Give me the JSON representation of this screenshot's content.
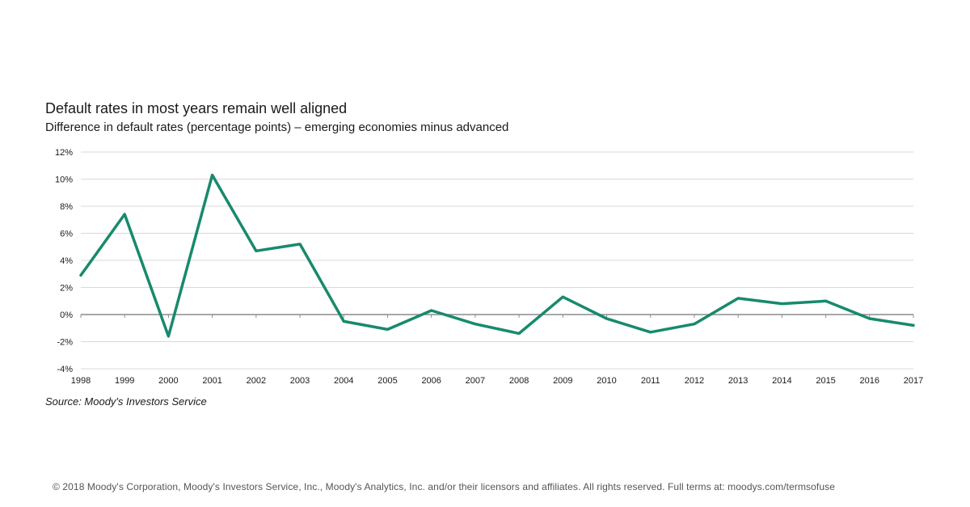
{
  "chart_data": {
    "type": "line",
    "title": "Default rates in most years remain well aligned",
    "subtitle": "Difference in default rates (percentage points) – emerging economies minus advanced",
    "xlabel": "",
    "ylabel": "",
    "ylim": [
      -4,
      12
    ],
    "yticks": [
      -4,
      -2,
      0,
      2,
      4,
      6,
      8,
      10,
      12
    ],
    "ytick_labels": [
      "-4%",
      "-2%",
      "0%",
      "2%",
      "4%",
      "6%",
      "8%",
      "10%",
      "12%"
    ],
    "x": [
      "1998",
      "1999",
      "2000",
      "2001",
      "2002",
      "2003",
      "2004",
      "2005",
      "2006",
      "2007",
      "2008",
      "2009",
      "2010",
      "2011",
      "2012",
      "2013",
      "2014",
      "2015",
      "2016",
      "2017"
    ],
    "series": [
      {
        "values": [
          2.9,
          7.4,
          -1.6,
          10.3,
          4.7,
          5.2,
          -0.5,
          -1.1,
          0.3,
          -0.7,
          -1.4,
          1.3,
          -0.3,
          -1.3,
          -0.7,
          1.2,
          0.8,
          1.0,
          -0.3,
          -0.8
        ],
        "color": "#178a6c"
      }
    ],
    "grid": true,
    "gridline_color": "#d9d9d9",
    "legend": "none"
  },
  "source": "Source: Moody's Investors Service",
  "footer": "© 2018 Moody's Corporation, Moody's Investors Service, Inc., Moody's Analytics, Inc. and/or their licensors and affiliates. All rights reserved. Full terms at: moodys.com/termsofuse"
}
